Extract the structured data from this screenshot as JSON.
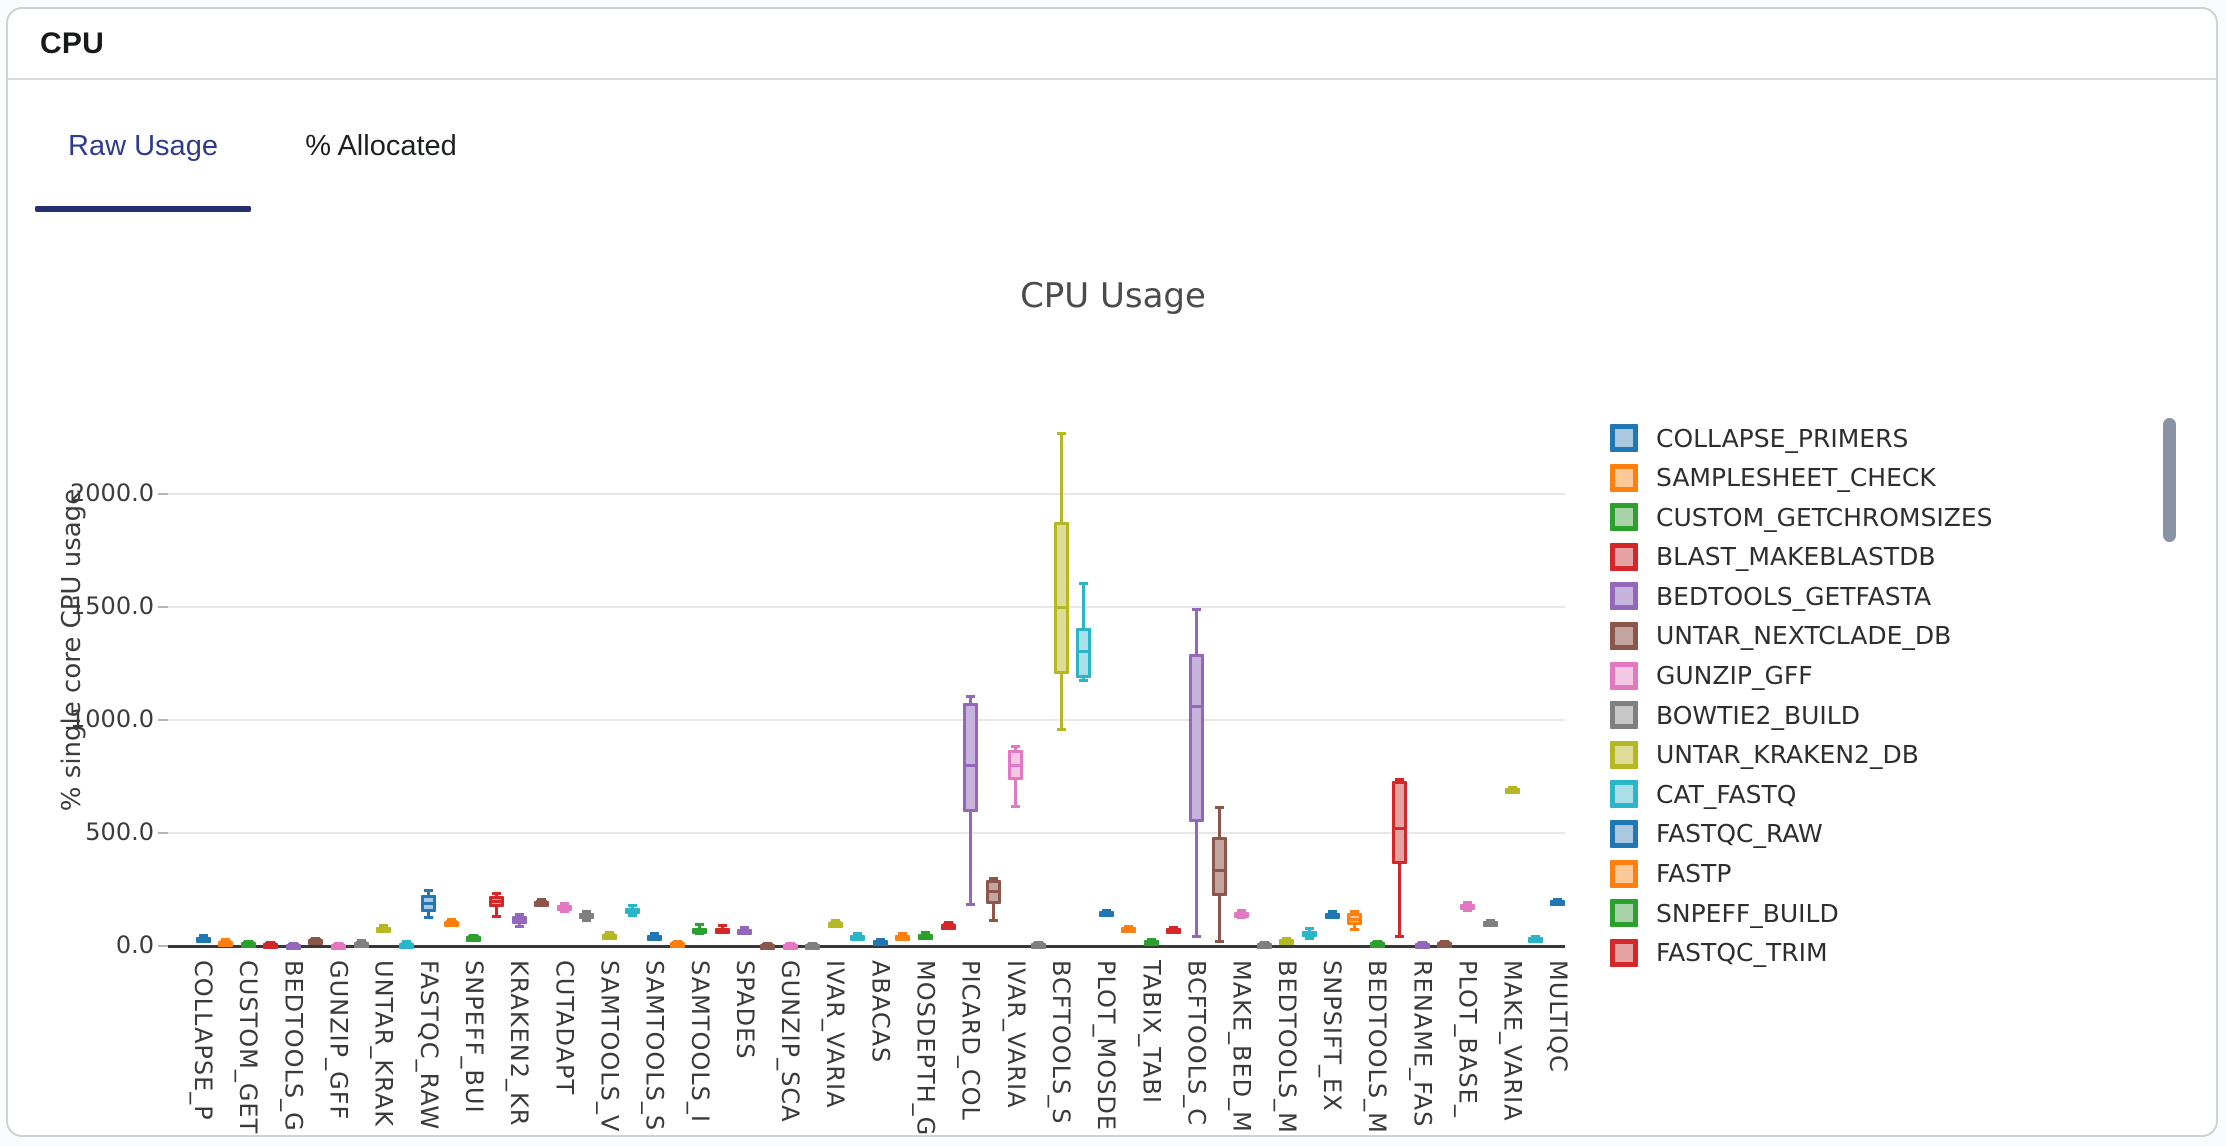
{
  "panel": {
    "title": "CPU"
  },
  "tabs": [
    {
      "label": "Raw Usage",
      "active": true
    },
    {
      "label": "% Allocated",
      "active": false
    }
  ],
  "accent_colors": {
    "active_tab_text": "#2e3b8f",
    "active_tab_underline": "#27306e"
  },
  "scrollbar": {
    "present": true,
    "color": "#8a93a6"
  },
  "legend": {
    "items": [
      {
        "label": "COLLAPSE_PRIMERS",
        "color": "blue"
      },
      {
        "label": "SAMPLESHEET_CHECK",
        "color": "orange"
      },
      {
        "label": "CUSTOM_GETCHROMSIZES",
        "color": "green"
      },
      {
        "label": "BLAST_MAKEBLASTDB",
        "color": "red"
      },
      {
        "label": "BEDTOOLS_GETFASTA",
        "color": "purple"
      },
      {
        "label": "UNTAR_NEXTCLADE_DB",
        "color": "brown"
      },
      {
        "label": "GUNZIP_GFF",
        "color": "pink"
      },
      {
        "label": "BOWTIE2_BUILD",
        "color": "gray"
      },
      {
        "label": "UNTAR_KRAKEN2_DB",
        "color": "olive"
      },
      {
        "label": "CAT_FASTQ",
        "color": "cyan"
      },
      {
        "label": "FASTQC_RAW",
        "color": "blue"
      },
      {
        "label": "FASTP",
        "color": "orange"
      },
      {
        "label": "SNPEFF_BUILD",
        "color": "green"
      },
      {
        "label": "FASTQC_TRIM",
        "color": "red"
      }
    ]
  },
  "chart_data": {
    "type": "box",
    "title": "CPU Usage",
    "ylabel": "% single core CPU usage",
    "ytick_labels": [
      "0.0",
      "500.0",
      "1000.0",
      "1500.0",
      "2000.0"
    ],
    "ytick_values": [
      0,
      500,
      1000,
      1500,
      2000
    ],
    "ylim": [
      0,
      2350
    ],
    "grid": true,
    "legend_position": "right",
    "palette": {
      "blue": {
        "stroke": "#1f77b4",
        "fill": "#aac8e0"
      },
      "orange": {
        "stroke": "#ff7f0e",
        "fill": "#fbc998"
      },
      "green": {
        "stroke": "#2ca02c",
        "fill": "#a8d3a8"
      },
      "red": {
        "stroke": "#d62728",
        "fill": "#e6a3a3"
      },
      "purple": {
        "stroke": "#9467bd",
        "fill": "#c6b4dc"
      },
      "brown": {
        "stroke": "#8c564b",
        "fill": "#c2a59f"
      },
      "pink": {
        "stroke": "#e377c2",
        "fill": "#f3c8e4"
      },
      "gray": {
        "stroke": "#7f7f7f",
        "fill": "#c7c7c7"
      },
      "olive": {
        "stroke": "#b5b822",
        "fill": "#dedc96"
      },
      "cyan": {
        "stroke": "#2ab5c8",
        "fill": "#aadfe8"
      }
    },
    "x_labels": [
      "COLLAPSE_P",
      "CUSTOM_GET",
      "BEDTOOLS_G",
      "GUNZIP_GFF",
      "UNTAR_KRAK",
      "FASTQC_RAW",
      "SNPEFF_BUI",
      "KRAKEN2_KR",
      "CUTADAPT",
      "SAMTOOLS_V",
      "SAMTOOLS_S",
      "SAMTOOLS_I",
      "SPADES",
      "GUNZIP_SCA",
      "IVAR_VARIA",
      "ABACAS",
      "MOSDEPTH_G",
      "PICARD_COL",
      "IVAR_VARIA",
      "BCFTOOLS_S",
      "PLOT_MOSDE",
      "TABIX_TABI",
      "BCFTOOLS_C",
      "MAKE_BED_M",
      "BEDTOOLS_M",
      "SNPSIFT_EX",
      "BEDTOOLS_M",
      "RENAME_FAS",
      "PLOT_BASE_",
      "MAKE_VARIA",
      "MULTIQC"
    ],
    "x_label_every_other_box": true,
    "boxes": [
      {
        "color": "blue",
        "lo": 18,
        "q1": 25,
        "med": 32,
        "q3": 40,
        "hi": 46
      },
      {
        "color": "orange",
        "lo": 10,
        "q1": 15,
        "med": 19,
        "q3": 23,
        "hi": 27
      },
      {
        "color": "green",
        "lo": 7,
        "q1": 10,
        "med": 14,
        "q3": 17,
        "hi": 20
      },
      {
        "color": "red",
        "lo": 3,
        "q1": 6,
        "med": 9,
        "q3": 12,
        "hi": 15
      },
      {
        "color": "purple",
        "lo": 2,
        "q1": 4,
        "med": 6,
        "q3": 9,
        "hi": 11
      },
      {
        "color": "brown",
        "lo": 19,
        "q1": 23,
        "med": 27,
        "q3": 31,
        "hi": 35
      },
      {
        "color": "pink",
        "lo": 3,
        "q1": 5,
        "med": 8,
        "q3": 10,
        "hi": 13
      },
      {
        "color": "gray",
        "lo": 7,
        "q1": 11,
        "med": 15,
        "q3": 19,
        "hi": 23
      },
      {
        "color": "olive",
        "lo": 67,
        "q1": 72,
        "med": 78,
        "q3": 84,
        "hi": 90
      },
      {
        "color": "cyan",
        "lo": 5,
        "q1": 8,
        "med": 11,
        "q3": 15,
        "hi": 18
      },
      {
        "color": "blue",
        "lo": 128,
        "q1": 152,
        "med": 190,
        "q3": 226,
        "hi": 246
      },
      {
        "color": "orange",
        "lo": 97,
        "q1": 102,
        "med": 107,
        "q3": 112,
        "hi": 117
      },
      {
        "color": "green",
        "lo": 32,
        "q1": 36,
        "med": 40,
        "q3": 44,
        "hi": 48
      },
      {
        "color": "red",
        "lo": 130,
        "q1": 172,
        "med": 196,
        "q3": 222,
        "hi": 233
      },
      {
        "color": "purple",
        "lo": 86,
        "q1": 97,
        "med": 112,
        "q3": 131,
        "hi": 141
      },
      {
        "color": "brown",
        "lo": 186,
        "q1": 191,
        "med": 196,
        "q3": 201,
        "hi": 206
      },
      {
        "color": "pink",
        "lo": 151,
        "q1": 159,
        "med": 170,
        "q3": 181,
        "hi": 190
      },
      {
        "color": "gray",
        "lo": 111,
        "q1": 119,
        "med": 130,
        "q3": 144,
        "hi": 154
      },
      {
        "color": "olive",
        "lo": 41,
        "q1": 45,
        "med": 50,
        "q3": 55,
        "hi": 60
      },
      {
        "color": "cyan",
        "lo": 137,
        "q1": 147,
        "med": 158,
        "q3": 169,
        "hi": 179
      },
      {
        "color": "blue",
        "lo": 27,
        "q1": 33,
        "med": 40,
        "q3": 47,
        "hi": 54
      },
      {
        "color": "orange",
        "lo": 7,
        "q1": 10,
        "med": 14,
        "q3": 18,
        "hi": 22
      },
      {
        "color": "green",
        "lo": 57,
        "q1": 64,
        "med": 72,
        "q3": 81,
        "hi": 94
      },
      {
        "color": "red",
        "lo": 61,
        "q1": 67,
        "med": 74,
        "q3": 81,
        "hi": 89
      },
      {
        "color": "purple",
        "lo": 57,
        "q1": 62,
        "med": 68,
        "q3": 74,
        "hi": 80
      },
      {
        "color": "brown",
        "lo": 3,
        "q1": 5,
        "med": 8,
        "q3": 10,
        "hi": 12
      },
      {
        "color": "pink",
        "lo": 3,
        "q1": 5,
        "med": 8,
        "q3": 10,
        "hi": 12
      },
      {
        "color": "gray",
        "lo": 2,
        "q1": 4,
        "med": 5,
        "q3": 7,
        "hi": 9
      },
      {
        "color": "olive",
        "lo": 95,
        "q1": 99,
        "med": 104,
        "q3": 108,
        "hi": 112
      },
      {
        "color": "cyan",
        "lo": 29,
        "q1": 35,
        "med": 42,
        "q3": 48,
        "hi": 54
      },
      {
        "color": "blue",
        "lo": 11,
        "q1": 15,
        "med": 20,
        "q3": 25,
        "hi": 30
      },
      {
        "color": "orange",
        "lo": 35,
        "q1": 39,
        "med": 44,
        "q3": 49,
        "hi": 54
      },
      {
        "color": "green",
        "lo": 37,
        "q1": 42,
        "med": 48,
        "q3": 54,
        "hi": 60
      },
      {
        "color": "red",
        "lo": 82,
        "q1": 88,
        "med": 93,
        "q3": 98,
        "hi": 104
      },
      {
        "color": "purple",
        "lo": 185,
        "q1": 593,
        "med": 800,
        "q3": 1075,
        "hi": 1102
      },
      {
        "color": "brown",
        "lo": 115,
        "q1": 186,
        "med": 243,
        "q3": 292,
        "hi": 297
      },
      {
        "color": "pink",
        "lo": 619,
        "q1": 734,
        "med": 800,
        "q3": 867,
        "hi": 881
      },
      {
        "color": "gray",
        "lo": 3,
        "q1": 6,
        "med": 9,
        "q3": 12,
        "hi": 15
      },
      {
        "color": "olive",
        "lo": 956,
        "q1": 1203,
        "med": 1500,
        "q3": 1876,
        "hi": 2266
      },
      {
        "color": "cyan",
        "lo": 1173,
        "q1": 1186,
        "med": 1305,
        "q3": 1407,
        "hi": 1602
      },
      {
        "color": "blue",
        "lo": 142,
        "q1": 146,
        "med": 150,
        "q3": 154,
        "hi": 158
      },
      {
        "color": "orange",
        "lo": 70,
        "q1": 74,
        "med": 79,
        "q3": 84,
        "hi": 88
      },
      {
        "color": "green",
        "lo": 14,
        "q1": 18,
        "med": 22,
        "q3": 26,
        "hi": 30
      },
      {
        "color": "red",
        "lo": 63,
        "q1": 68,
        "med": 74,
        "q3": 79,
        "hi": 84
      },
      {
        "color": "purple",
        "lo": 40,
        "q1": 549,
        "med": 1060,
        "q3": 1292,
        "hi": 1491
      },
      {
        "color": "brown",
        "lo": 22,
        "q1": 221,
        "med": 332,
        "q3": 482,
        "hi": 611
      },
      {
        "color": "pink",
        "lo": 124,
        "q1": 131,
        "med": 139,
        "q3": 149,
        "hi": 157
      },
      {
        "color": "gray",
        "lo": 3,
        "q1": 6,
        "med": 9,
        "q3": 12,
        "hi": 15
      },
      {
        "color": "olive",
        "lo": 17,
        "q1": 21,
        "med": 25,
        "q3": 29,
        "hi": 33
      },
      {
        "color": "cyan",
        "lo": 34,
        "q1": 44,
        "med": 54,
        "q3": 67,
        "hi": 77
      },
      {
        "color": "blue",
        "lo": 131,
        "q1": 136,
        "med": 141,
        "q3": 146,
        "hi": 151
      },
      {
        "color": "orange",
        "lo": 71,
        "q1": 93,
        "med": 118,
        "q3": 146,
        "hi": 153
      },
      {
        "color": "green",
        "lo": 7,
        "q1": 10,
        "med": 14,
        "q3": 18,
        "hi": 22
      },
      {
        "color": "red",
        "lo": 40,
        "q1": 363,
        "med": 518,
        "q3": 730,
        "hi": 737
      },
      {
        "color": "purple",
        "lo": 3,
        "q1": 6,
        "med": 9,
        "q3": 12,
        "hi": 15
      },
      {
        "color": "brown",
        "lo": 7,
        "q1": 10,
        "med": 14,
        "q3": 18,
        "hi": 22
      },
      {
        "color": "pink",
        "lo": 157,
        "q1": 165,
        "med": 175,
        "q3": 185,
        "hi": 193
      },
      {
        "color": "gray",
        "lo": 97,
        "q1": 101,
        "med": 105,
        "q3": 109,
        "hi": 113
      },
      {
        "color": "olive",
        "lo": 685,
        "q1": 689,
        "med": 694,
        "q3": 699,
        "hi": 703
      },
      {
        "color": "cyan",
        "lo": 27,
        "q1": 30,
        "med": 34,
        "q3": 38,
        "hi": 41
      },
      {
        "color": "blue",
        "lo": 189,
        "q1": 194,
        "med": 198,
        "q3": 203,
        "hi": 207
      }
    ]
  }
}
